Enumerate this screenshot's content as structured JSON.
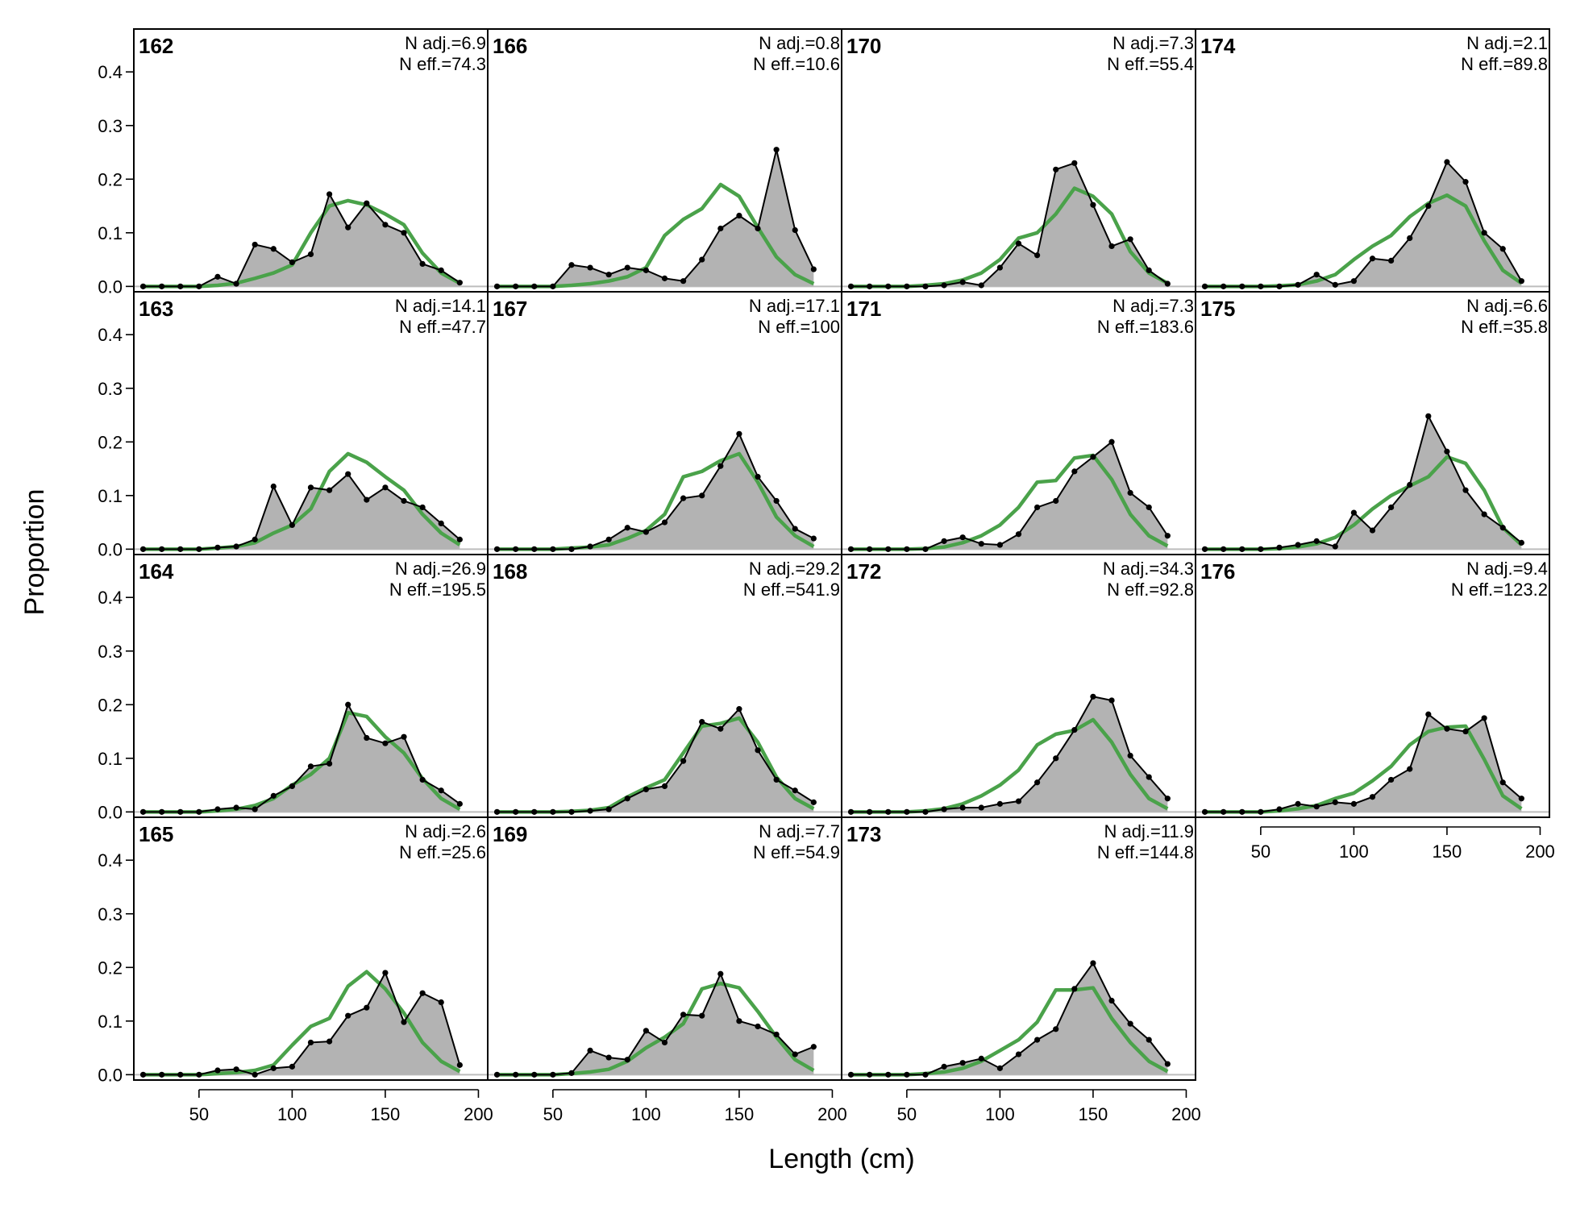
{
  "chart_data": {
    "type": "area",
    "ylabel": "Proportion",
    "xlabel": "Length (cm)",
    "xlim": [
      15,
      205
    ],
    "ylim": [
      -0.01,
      0.48
    ],
    "x_ticks": [
      50,
      100,
      150,
      200
    ],
    "y_ticks": [
      0.0,
      0.1,
      0.2,
      0.3,
      0.4
    ],
    "y_tick_labels": [
      "0.0",
      "0.1",
      "0.2",
      "0.3",
      "0.4"
    ],
    "x_tick_labels": [
      "50",
      "100",
      "150",
      "200"
    ],
    "x": [
      20,
      30,
      40,
      50,
      60,
      70,
      80,
      90,
      100,
      110,
      120,
      130,
      140,
      150,
      160,
      170,
      180,
      190
    ],
    "colors": {
      "observed_fill": "#b3b3b3",
      "observed_line": "#000000",
      "expected_line": "#4aa24a",
      "zero_line": "#bdbdbd"
    },
    "panels": [
      {
        "label": "162",
        "n_adj": "N adj.=6.9",
        "n_eff": "N eff.=74.3",
        "observed": [
          0,
          0,
          0,
          0,
          0.018,
          0.005,
          0.078,
          0.07,
          0.045,
          0.06,
          0.172,
          0.11,
          0.155,
          0.115,
          0.1,
          0.042,
          0.03,
          0.007
        ],
        "expected": [
          0,
          0,
          0,
          0,
          0.002,
          0.006,
          0.015,
          0.025,
          0.04,
          0.1,
          0.15,
          0.16,
          0.152,
          0.135,
          0.115,
          0.062,
          0.025,
          0.006
        ]
      },
      {
        "label": "163",
        "n_adj": "N adj.=14.1",
        "n_eff": "N eff.=47.7",
        "observed": [
          0,
          0,
          0,
          0,
          0.003,
          0.005,
          0.018,
          0.117,
          0.045,
          0.115,
          0.11,
          0.14,
          0.092,
          0.115,
          0.09,
          0.078,
          0.048,
          0.018
        ],
        "expected": [
          0,
          0,
          0,
          0,
          0.002,
          0.005,
          0.012,
          0.03,
          0.045,
          0.075,
          0.145,
          0.178,
          0.162,
          0.135,
          0.11,
          0.065,
          0.03,
          0.008
        ]
      },
      {
        "label": "164",
        "n_adj": "N adj.=26.9",
        "n_eff": "N eff.=195.5",
        "observed": [
          0,
          0,
          0,
          0,
          0.005,
          0.008,
          0.005,
          0.03,
          0.048,
          0.085,
          0.09,
          0.2,
          0.138,
          0.128,
          0.14,
          0.06,
          0.04,
          0.015
        ],
        "expected": [
          0,
          0,
          0,
          0,
          0.002,
          0.005,
          0.012,
          0.025,
          0.05,
          0.07,
          0.1,
          0.185,
          0.178,
          0.14,
          0.11,
          0.062,
          0.025,
          0.005
        ]
      },
      {
        "label": "165",
        "n_adj": "N adj.=2.6",
        "n_eff": "N eff.=25.6",
        "observed": [
          0,
          0,
          0,
          0,
          0.008,
          0.01,
          0.0,
          0.012,
          0.015,
          0.06,
          0.062,
          0.11,
          0.125,
          0.19,
          0.098,
          0.152,
          0.135,
          0.018
        ],
        "expected": [
          0,
          0,
          0,
          0,
          0.002,
          0.004,
          0.008,
          0.018,
          0.055,
          0.09,
          0.105,
          0.165,
          0.192,
          0.16,
          0.115,
          0.06,
          0.025,
          0.006
        ]
      },
      {
        "label": "166",
        "n_adj": "N adj.=0.8",
        "n_eff": "N eff.=10.6",
        "observed": [
          0,
          0,
          0,
          0,
          0.04,
          0.035,
          0.022,
          0.035,
          0.03,
          0.015,
          0.01,
          0.05,
          0.108,
          0.132,
          0.108,
          0.255,
          0.105,
          0.032
        ],
        "expected": [
          0,
          0,
          0,
          0,
          0.002,
          0.005,
          0.01,
          0.018,
          0.035,
          0.095,
          0.125,
          0.145,
          0.19,
          0.168,
          0.11,
          0.055,
          0.022,
          0.005
        ]
      },
      {
        "label": "167",
        "n_adj": "N adj.=17.1",
        "n_eff": "N eff.=100",
        "observed": [
          0,
          0,
          0,
          0,
          0,
          0.005,
          0.018,
          0.04,
          0.032,
          0.05,
          0.095,
          0.1,
          0.155,
          0.215,
          0.135,
          0.09,
          0.038,
          0.02
        ],
        "expected": [
          0,
          0,
          0,
          0,
          0.002,
          0.004,
          0.008,
          0.02,
          0.035,
          0.065,
          0.135,
          0.145,
          0.165,
          0.178,
          0.125,
          0.06,
          0.025,
          0.005
        ]
      },
      {
        "label": "168",
        "n_adj": "N adj.=29.2",
        "n_eff": "N eff.=541.9",
        "observed": [
          0,
          0,
          0,
          0,
          0,
          0.002,
          0.005,
          0.025,
          0.042,
          0.048,
          0.095,
          0.168,
          0.155,
          0.192,
          0.115,
          0.06,
          0.04,
          0.018
        ],
        "expected": [
          0,
          0,
          0,
          0,
          0.001,
          0.003,
          0.008,
          0.028,
          0.045,
          0.06,
          0.11,
          0.16,
          0.165,
          0.175,
          0.13,
          0.065,
          0.025,
          0.006
        ]
      },
      {
        "label": "169",
        "n_adj": "N adj.=7.7",
        "n_eff": "N eff.=54.9",
        "observed": [
          0,
          0,
          0,
          0,
          0.003,
          0.045,
          0.032,
          0.028,
          0.082,
          0.06,
          0.112,
          0.11,
          0.188,
          0.1,
          0.09,
          0.075,
          0.038,
          0.052
        ],
        "expected": [
          0,
          0,
          0,
          0,
          0.002,
          0.005,
          0.01,
          0.025,
          0.05,
          0.07,
          0.095,
          0.16,
          0.17,
          0.162,
          0.118,
          0.07,
          0.028,
          0.008
        ]
      },
      {
        "label": "170",
        "n_adj": "N adj.=7.3",
        "n_eff": "N eff.=55.4",
        "observed": [
          0,
          0,
          0,
          0,
          0,
          0.002,
          0.008,
          0.002,
          0.035,
          0.08,
          0.058,
          0.218,
          0.23,
          0.152,
          0.075,
          0.088,
          0.03,
          0.005
        ],
        "expected": [
          0,
          0,
          0,
          0,
          0.002,
          0.005,
          0.012,
          0.025,
          0.05,
          0.09,
          0.1,
          0.135,
          0.183,
          0.168,
          0.135,
          0.065,
          0.025,
          0.006
        ]
      },
      {
        "label": "171",
        "n_adj": "N adj.=7.3",
        "n_eff": "N eff.=183.6",
        "observed": [
          0,
          0,
          0,
          0,
          0,
          0.015,
          0.022,
          0.01,
          0.008,
          0.028,
          0.078,
          0.09,
          0.145,
          0.172,
          0.2,
          0.105,
          0.078,
          0.025
        ],
        "expected": [
          0,
          0,
          0,
          0,
          0.001,
          0.004,
          0.012,
          0.025,
          0.045,
          0.078,
          0.125,
          0.128,
          0.17,
          0.175,
          0.13,
          0.065,
          0.025,
          0.006
        ]
      },
      {
        "label": "172",
        "n_adj": "N adj.=34.3",
        "n_eff": "N eff.=92.8",
        "observed": [
          0,
          0,
          0,
          0,
          0,
          0.005,
          0.008,
          0.008,
          0.015,
          0.02,
          0.055,
          0.1,
          0.153,
          0.215,
          0.208,
          0.105,
          0.065,
          0.025
        ],
        "expected": [
          0,
          0,
          0,
          0,
          0.002,
          0.006,
          0.015,
          0.03,
          0.05,
          0.078,
          0.125,
          0.145,
          0.152,
          0.172,
          0.13,
          0.07,
          0.025,
          0.006
        ]
      },
      {
        "label": "173",
        "n_adj": "N adj.=11.9",
        "n_eff": "N eff.=144.8",
        "observed": [
          0,
          0,
          0,
          0,
          0,
          0.015,
          0.022,
          0.03,
          0.012,
          0.038,
          0.065,
          0.085,
          0.16,
          0.208,
          0.138,
          0.095,
          0.065,
          0.02
        ],
        "expected": [
          0,
          0,
          0,
          0,
          0.002,
          0.005,
          0.012,
          0.025,
          0.045,
          0.065,
          0.098,
          0.158,
          0.158,
          0.162,
          0.105,
          0.06,
          0.025,
          0.006
        ]
      },
      {
        "label": "174",
        "n_adj": "N adj.=2.1",
        "n_eff": "N eff.=89.8",
        "observed": [
          0,
          0,
          0,
          0,
          0,
          0.003,
          0.022,
          0.003,
          0.01,
          0.052,
          0.048,
          0.09,
          0.15,
          0.232,
          0.195,
          0.1,
          0.07,
          0.01
        ],
        "expected": [
          0,
          0,
          0,
          0,
          0.001,
          0.003,
          0.01,
          0.022,
          0.05,
          0.075,
          0.095,
          0.13,
          0.155,
          0.17,
          0.15,
          0.085,
          0.03,
          0.006
        ]
      },
      {
        "label": "175",
        "n_adj": "N adj.=6.6",
        "n_eff": "N eff.=35.8",
        "observed": [
          0,
          0,
          0,
          0,
          0.003,
          0.008,
          0.015,
          0.005,
          0.068,
          0.035,
          0.078,
          0.12,
          0.248,
          0.182,
          0.11,
          0.065,
          0.04,
          0.012
        ],
        "expected": [
          0,
          0,
          0,
          0,
          0.001,
          0.004,
          0.01,
          0.022,
          0.045,
          0.075,
          0.1,
          0.118,
          0.135,
          0.172,
          0.16,
          0.11,
          0.04,
          0.008
        ]
      },
      {
        "label": "176",
        "n_adj": "N adj.=9.4",
        "n_eff": "N eff.=123.2",
        "observed": [
          0,
          0,
          0,
          0,
          0.005,
          0.015,
          0.01,
          0.018,
          0.015,
          0.028,
          0.06,
          0.08,
          0.182,
          0.155,
          0.15,
          0.175,
          0.055,
          0.025
        ],
        "expected": [
          0,
          0,
          0,
          0,
          0.002,
          0.006,
          0.012,
          0.025,
          0.035,
          0.058,
          0.085,
          0.125,
          0.15,
          0.158,
          0.16,
          0.098,
          0.03,
          0.006
        ]
      }
    ]
  }
}
